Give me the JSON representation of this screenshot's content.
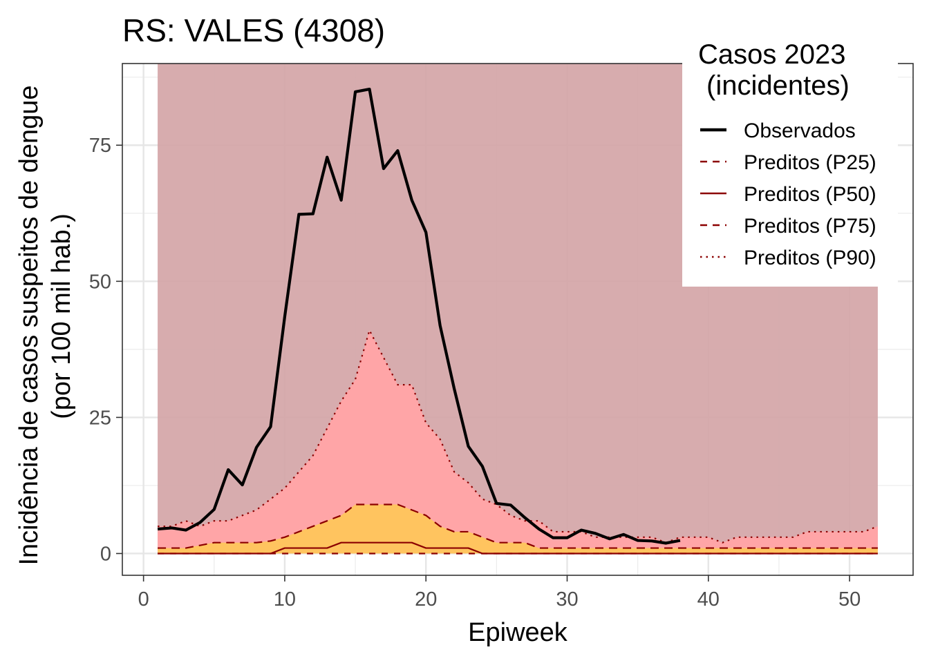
{
  "chart_data": {
    "type": "line",
    "title": "RS: VALES (4308)",
    "xlabel": "Epiweek",
    "ylabel": [
      "Incidência de casos suspeitos de dengue",
      "(por 100 mil hab.)"
    ],
    "xlim": [
      -1.5,
      54.5
    ],
    "ylim": [
      -4,
      90
    ],
    "x_ticks": [
      0,
      10,
      20,
      30,
      40,
      50
    ],
    "y_ticks": [
      0,
      25,
      50,
      75
    ],
    "grid": true,
    "legend": {
      "title": [
        "Casos 2023",
        "(incidentes)"
      ],
      "placement": "top-right",
      "entries": [
        "Observados",
        "Preditos (P25)",
        "Preditos (P50)",
        "Preditos (P75)",
        "Preditos (P90)"
      ]
    },
    "background_band": {
      "x": [
        1,
        52
      ],
      "y": [
        0,
        90
      ],
      "color": "#d4a5a7"
    },
    "series": [
      {
        "name": "Observados",
        "color": "#000000",
        "x": [
          1,
          2,
          3,
          4,
          5,
          6,
          7,
          8,
          9,
          10,
          11,
          12,
          13,
          14,
          15,
          16,
          17,
          18,
          19,
          20,
          21,
          22,
          23,
          24,
          25,
          26,
          27,
          28,
          29,
          30,
          31,
          32,
          33,
          34,
          35,
          36,
          37,
          38
        ],
        "values": [
          4.5,
          4.7,
          4.3,
          5.7,
          8.1,
          15.4,
          12.6,
          19.5,
          23.3,
          43.5,
          62.3,
          62.4,
          72.8,
          64.9,
          84.8,
          85.3,
          70.7,
          74.0,
          64.9,
          59.0,
          41.9,
          30.3,
          19.7,
          16.0,
          9.2,
          8.9,
          6.6,
          4.5,
          2.9,
          2.9,
          4.3,
          3.7,
          2.7,
          3.5,
          2.4,
          2.3,
          1.9,
          2.4
        ]
      },
      {
        "name": "Preditos (P25)",
        "color": "#8b0000",
        "x": [
          1,
          52
        ],
        "values": [
          0,
          0
        ]
      },
      {
        "name": "Preditos (P50)",
        "color": "#8b0000",
        "x": [
          1,
          9,
          10,
          13,
          14,
          19,
          20,
          23,
          24,
          52
        ],
        "values": [
          0,
          0,
          1,
          1,
          2,
          2,
          1,
          1,
          0,
          0
        ]
      },
      {
        "name": "Preditos (P75)",
        "color": "#8b0000",
        "x": [
          1,
          3,
          4,
          5,
          8,
          9,
          10,
          11,
          12,
          13,
          14,
          15,
          16,
          17,
          18,
          19,
          20,
          21,
          22,
          23,
          24,
          25,
          26,
          27,
          28,
          52
        ],
        "values": [
          1,
          1,
          1.5,
          2,
          2,
          2.3,
          3,
          4,
          5,
          6,
          7,
          9,
          9,
          9,
          9,
          8,
          7,
          5,
          4,
          4,
          3,
          2,
          2,
          2,
          1,
          1
        ]
      },
      {
        "name": "Preditos (P90)",
        "color": "#8b0000",
        "x": [
          1,
          2,
          3,
          4,
          5,
          6,
          7,
          8,
          9,
          10,
          11,
          12,
          13,
          14,
          15,
          16,
          17,
          18,
          19,
          20,
          21,
          22,
          23,
          24,
          25,
          26,
          27,
          28,
          29,
          30,
          31,
          32,
          33,
          34,
          35,
          36,
          37,
          38,
          39,
          40,
          41,
          42,
          43,
          44,
          45,
          46,
          47,
          48,
          49,
          50,
          51,
          52
        ],
        "values": [
          5,
          5,
          6,
          5,
          6,
          6,
          7,
          8,
          10,
          12,
          15,
          18,
          23,
          28,
          32,
          41,
          36,
          31,
          31,
          24,
          21,
          15,
          13,
          10,
          9,
          7,
          6,
          6,
          4,
          4,
          4,
          3,
          3,
          3,
          3,
          3,
          2,
          3,
          3,
          3,
          2,
          3,
          3,
          3,
          3,
          3,
          4,
          4,
          4,
          4,
          4,
          5
        ]
      }
    ],
    "band_colors": {
      "p75_to_p90": "#ffa5a7",
      "below_p75": "#ffc45f"
    }
  }
}
